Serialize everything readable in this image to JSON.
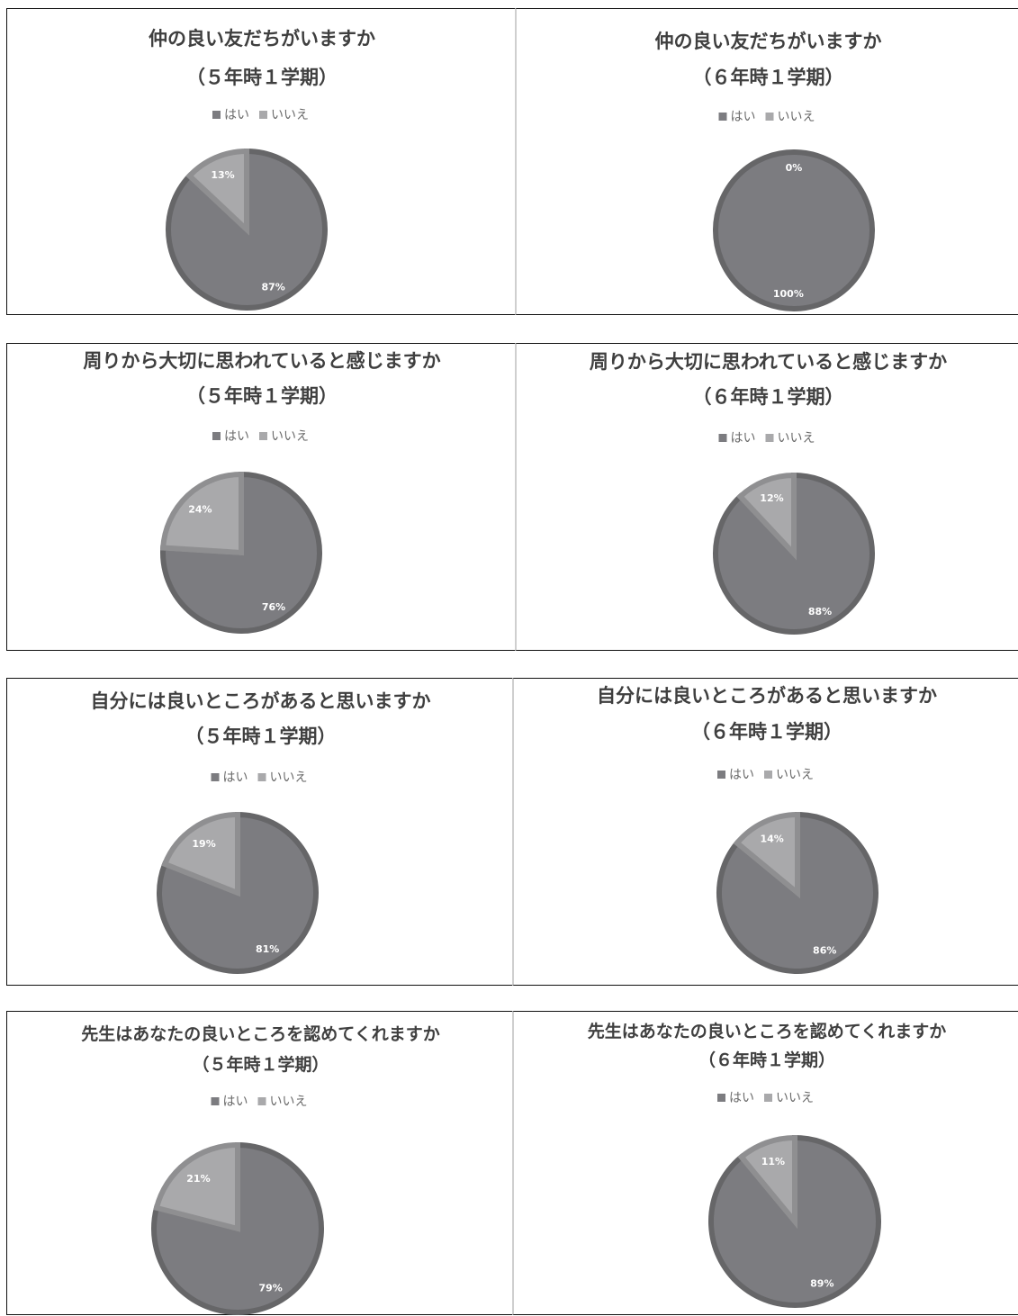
{
  "colors": {
    "yes": "#7c7c80",
    "no": "#a9a9ab",
    "edge_yes": "#666668",
    "edge_no": "#8f8f91",
    "title": "#3f3f3f"
  },
  "legend": {
    "yes": "はい",
    "no": "いいえ"
  },
  "chart_data": [
    {
      "type": "pie",
      "title": "仲の良い友だちがいますか",
      "subtitle": "（５年時１学期）",
      "categories": [
        "はい",
        "いいえ"
      ],
      "values": [
        87,
        13
      ],
      "labels": [
        "87%",
        "13%"
      ],
      "legend_position": "top"
    },
    {
      "type": "pie",
      "title": "仲の良い友だちがいますか",
      "subtitle": "（６年時１学期）",
      "categories": [
        "はい",
        "いいえ"
      ],
      "values": [
        100,
        0
      ],
      "labels": [
        "100%",
        "0%"
      ],
      "legend_position": "top"
    },
    {
      "type": "pie",
      "title": "周りから大切に思われていると感じますか",
      "subtitle": "（５年時１学期）",
      "categories": [
        "はい",
        "いいえ"
      ],
      "values": [
        76,
        24
      ],
      "labels": [
        "76%",
        "24%"
      ],
      "legend_position": "top"
    },
    {
      "type": "pie",
      "title": "周りから大切に思われていると感じますか",
      "subtitle": "（６年時１学期）",
      "categories": [
        "はい",
        "いいえ"
      ],
      "values": [
        88,
        12
      ],
      "labels": [
        "88%",
        "12%"
      ],
      "legend_position": "top"
    },
    {
      "type": "pie",
      "title": "自分には良いところがあると思いますか",
      "subtitle": "（５年時１学期）",
      "categories": [
        "はい",
        "いいえ"
      ],
      "values": [
        81,
        19
      ],
      "labels": [
        "81%",
        "19%"
      ],
      "legend_position": "top"
    },
    {
      "type": "pie",
      "title": "自分には良いところがあると思いますか",
      "subtitle": "（６年時１学期）",
      "categories": [
        "はい",
        "いいえ"
      ],
      "values": [
        86,
        14
      ],
      "labels": [
        "86%",
        "14%"
      ],
      "legend_position": "top"
    },
    {
      "type": "pie",
      "title": "先生はあなたの良いところを認めてくれますか",
      "subtitle": "（５年時１学期）",
      "categories": [
        "はい",
        "いいえ"
      ],
      "values": [
        79,
        21
      ],
      "labels": [
        "79%",
        "21%"
      ],
      "legend_position": "top"
    },
    {
      "type": "pie",
      "title": "先生はあなたの良いところを認めてくれますか",
      "subtitle": "（６年時１学期）",
      "categories": [
        "はい",
        "いいえ"
      ],
      "values": [
        89,
        11
      ],
      "labels": [
        "89%",
        "11%"
      ],
      "legend_position": "top"
    }
  ]
}
